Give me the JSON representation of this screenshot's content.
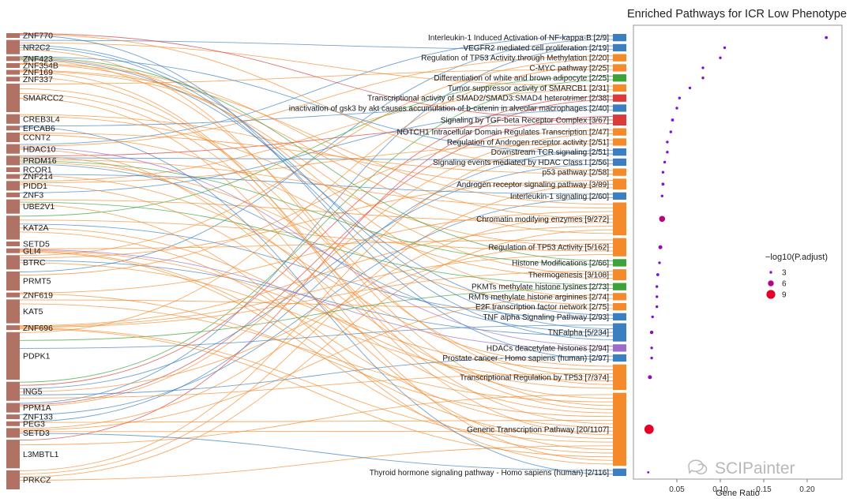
{
  "chart_data": {
    "type": "sankey_dotplot",
    "title": "Enriched Pathways for ICR Low Phenotype",
    "xlabel": "Gene Ratio",
    "xlim": [
      0,
      0.24
    ],
    "xticks": [
      "0.05",
      "0.10",
      "0.15",
      "0.20"
    ],
    "legend": {
      "title": "−log10(P.adjust)",
      "position": "right",
      "entries": [
        {
          "label": "3",
          "value": 3
        },
        {
          "label": "6",
          "value": 6
        },
        {
          "label": "9",
          "value": 9
        }
      ]
    },
    "category_colors": {
      "blue": "#3b7fc0",
      "orange": "#f58a2b",
      "green": "#3da23a",
      "red": "#d93b3b",
      "purple": "#9b6cc8"
    },
    "genes": [
      {
        "name": "ZNF770",
        "weight": 1
      },
      {
        "name": "NR2C2",
        "weight": 3
      },
      {
        "name": "ZNF423",
        "weight": 1
      },
      {
        "name": "ZNF354B",
        "weight": 1
      },
      {
        "name": "ZNF169",
        "weight": 1
      },
      {
        "name": "ZNF337",
        "weight": 1
      },
      {
        "name": "SMARCC2",
        "weight": 6
      },
      {
        "name": "CREB3L4",
        "weight": 2
      },
      {
        "name": "EFCAB6",
        "weight": 1
      },
      {
        "name": "CCNT2",
        "weight": 2
      },
      {
        "name": "HDAC10",
        "weight": 2
      },
      {
        "name": "PRDM16",
        "weight": 2
      },
      {
        "name": "RCOR1",
        "weight": 1
      },
      {
        "name": "ZNF214",
        "weight": 1
      },
      {
        "name": "PIDD1",
        "weight": 2
      },
      {
        "name": "ZNF3",
        "weight": 1
      },
      {
        "name": "UBE2V1",
        "weight": 3
      },
      {
        "name": "KAT2A",
        "weight": 5
      },
      {
        "name": "SETD5",
        "weight": 1
      },
      {
        "name": "GLI4",
        "weight": 1
      },
      {
        "name": "BTRC",
        "weight": 3
      },
      {
        "name": "PRMT5",
        "weight": 4
      },
      {
        "name": "ZNF619",
        "weight": 1
      },
      {
        "name": "KAT5",
        "weight": 5
      },
      {
        "name": "ZNF696",
        "weight": 1
      },
      {
        "name": "PDPK1",
        "weight": 10
      },
      {
        "name": "ING5",
        "weight": 4
      },
      {
        "name": "PPM1A",
        "weight": 2
      },
      {
        "name": "ZNF133",
        "weight": 1
      },
      {
        "name": "PEG3",
        "weight": 1
      },
      {
        "name": "SETD3",
        "weight": 2
      },
      {
        "name": "L3MBTL1",
        "weight": 6
      },
      {
        "name": "PRKCZ",
        "weight": 4
      }
    ],
    "pathways": [
      {
        "label": "Interleukin-1 Induced Activation of NF-kappa-B [2/9]",
        "gene_ratio": 0.222,
        "neg_log10_padj": 3.2,
        "color": "blue",
        "count": 2
      },
      {
        "label": "VEGFR2 mediated cell proliferation [2/19]",
        "gene_ratio": 0.105,
        "neg_log10_padj": 3.0,
        "color": "blue",
        "count": 2
      },
      {
        "label": "Regulation of TP53 Activity through Methylation [2/20]",
        "gene_ratio": 0.1,
        "neg_log10_padj": 3.0,
        "color": "orange",
        "count": 2
      },
      {
        "label": "C-MYC pathway [2/25]",
        "gene_ratio": 0.08,
        "neg_log10_padj": 3.0,
        "color": "orange",
        "count": 2
      },
      {
        "label": "Differentiation of white and brown adipocyte [2/25]",
        "gene_ratio": 0.08,
        "neg_log10_padj": 3.0,
        "color": "green",
        "count": 2
      },
      {
        "label": "Tumor suppressor activity of SMARCB1 [2/31]",
        "gene_ratio": 0.065,
        "neg_log10_padj": 3.0,
        "color": "orange",
        "count": 2
      },
      {
        "label": "Transcriptional activity of SMAD2/SMAD3:SMAD4 heterotrimer [2/38]",
        "gene_ratio": 0.053,
        "neg_log10_padj": 3.0,
        "color": "red",
        "count": 2
      },
      {
        "label": "inactivation of gsk3 by akt causes accumulation of b-catenin in alveolar macrophages [2/40]",
        "gene_ratio": 0.05,
        "neg_log10_padj": 3.0,
        "color": "blue",
        "count": 2
      },
      {
        "label": "Signaling by TGF-beta Receptor Complex [3/67]",
        "gene_ratio": 0.045,
        "neg_log10_padj": 3.3,
        "color": "red",
        "count": 3
      },
      {
        "label": "NOTCH1 Intracellular Domain Regulates Transcription [2/47]",
        "gene_ratio": 0.043,
        "neg_log10_padj": 3.0,
        "color": "orange",
        "count": 2
      },
      {
        "label": "Regulation of Androgen receptor activity [2/51]",
        "gene_ratio": 0.039,
        "neg_log10_padj": 3.0,
        "color": "orange",
        "count": 2
      },
      {
        "label": "Downstream TCR signaling [2/51]",
        "gene_ratio": 0.039,
        "neg_log10_padj": 3.0,
        "color": "blue",
        "count": 2
      },
      {
        "label": "Signaling events mediated by HDAC Class I [2/56]",
        "gene_ratio": 0.036,
        "neg_log10_padj": 3.0,
        "color": "blue",
        "count": 2
      },
      {
        "label": "p53 pathway [2/58]",
        "gene_ratio": 0.034,
        "neg_log10_padj": 3.0,
        "color": "orange",
        "count": 2
      },
      {
        "label": "Androgen receptor signaling pathway [3/89]",
        "gene_ratio": 0.034,
        "neg_log10_padj": 3.2,
        "color": "orange",
        "count": 3
      },
      {
        "label": "Interleukin-1 signaling [2/60]",
        "gene_ratio": 0.033,
        "neg_log10_padj": 3.0,
        "color": "blue",
        "count": 2
      },
      {
        "label": "Chromatin modifying enzymes [9/272]",
        "gene_ratio": 0.033,
        "neg_log10_padj": 6.2,
        "color": "orange",
        "count": 9
      },
      {
        "label": "Regulation of TP53 Activity [5/162]",
        "gene_ratio": 0.031,
        "neg_log10_padj": 4.2,
        "color": "orange",
        "count": 5
      },
      {
        "label": "Histone Modifications [2/66]",
        "gene_ratio": 0.03,
        "neg_log10_padj": 3.0,
        "color": "green",
        "count": 2
      },
      {
        "label": "Thermogenesis [3/108]",
        "gene_ratio": 0.028,
        "neg_log10_padj": 3.2,
        "color": "orange",
        "count": 3
      },
      {
        "label": "PKMTs methylate histone lysines [2/73]",
        "gene_ratio": 0.027,
        "neg_log10_padj": 3.0,
        "color": "green",
        "count": 2
      },
      {
        "label": "RMTs methylate histone arginines [2/74]",
        "gene_ratio": 0.027,
        "neg_log10_padj": 3.0,
        "color": "orange",
        "count": 2
      },
      {
        "label": "E2F transcription factor network [2/75]",
        "gene_ratio": 0.027,
        "neg_log10_padj": 3.0,
        "color": "orange",
        "count": 2
      },
      {
        "label": "TNF alpha Signaling Pathway [2/93]",
        "gene_ratio": 0.022,
        "neg_log10_padj": 3.0,
        "color": "blue",
        "count": 2
      },
      {
        "label": "TNFalpha [5/234]",
        "gene_ratio": 0.021,
        "neg_log10_padj": 3.8,
        "color": "blue",
        "count": 5
      },
      {
        "label": "HDACs deacetylate histones [2/94]",
        "gene_ratio": 0.021,
        "neg_log10_padj": 3.0,
        "color": "purple",
        "count": 2
      },
      {
        "label": "Prostate cancer - Homo sapiens (human) [2/97]",
        "gene_ratio": 0.021,
        "neg_log10_padj": 3.0,
        "color": "blue",
        "count": 2
      },
      {
        "label": "Transcriptional Regulation by TP53 [7/374]",
        "gene_ratio": 0.019,
        "neg_log10_padj": 4.2,
        "color": "orange",
        "count": 7
      },
      {
        "label": "Generic Transcription Pathway [20/1107]",
        "gene_ratio": 0.018,
        "neg_log10_padj": 9.5,
        "color": "orange",
        "count": 20
      },
      {
        "label": "Thyroid hormone signaling pathway - Homo sapiens (human) [2/116]",
        "gene_ratio": 0.017,
        "neg_log10_padj": 2.5,
        "color": "blue",
        "count": 2
      }
    ]
  },
  "watermark": {
    "text": "SCIPainter"
  }
}
